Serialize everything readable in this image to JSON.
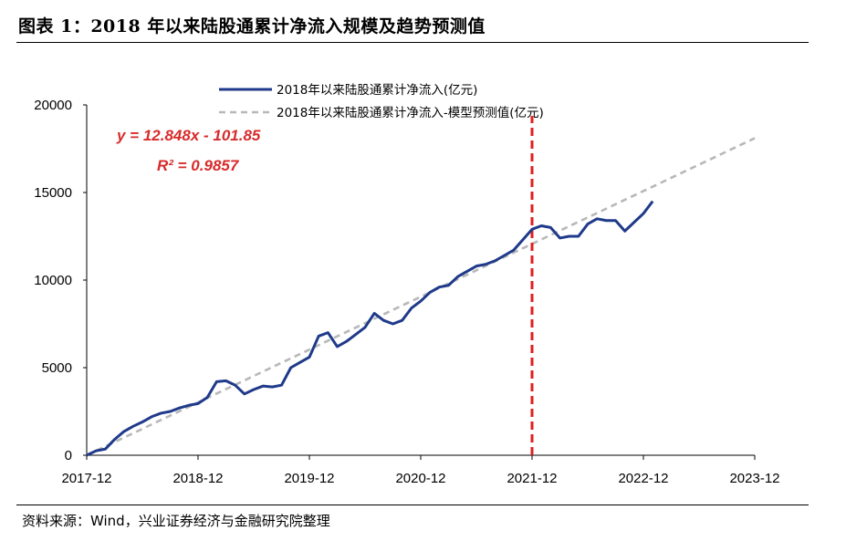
{
  "figure": {
    "title": "图表 1：2018 年以来陆股通累计净流入规模及趋势预测值",
    "source": "资料来源：Wind，兴业证券经济与金融研究院整理"
  },
  "chart_data": {
    "type": "line",
    "x_ticks": [
      "2017-12",
      "2018-12",
      "2019-12",
      "2020-12",
      "2021-12",
      "2022-12",
      "2023-12"
    ],
    "y_ticks": [
      "0",
      "5000",
      "10000",
      "15000",
      "20000"
    ],
    "ylim": [
      0,
      20000
    ],
    "xlim": [
      "2017-12",
      "2023-12"
    ],
    "legend_position": "top",
    "grid": false,
    "series": [
      {
        "name": "2018年以来陆股通累计净流入(亿元)",
        "color": "#1f3a8a",
        "style": "solid",
        "x": [
          "2017-12",
          "2018-01",
          "2018-02",
          "2018-03",
          "2018-04",
          "2018-05",
          "2018-06",
          "2018-07",
          "2018-08",
          "2018-09",
          "2018-10",
          "2018-11",
          "2018-12",
          "2019-01",
          "2019-02",
          "2019-03",
          "2019-04",
          "2019-05",
          "2019-06",
          "2019-07",
          "2019-08",
          "2019-09",
          "2019-10",
          "2019-11",
          "2019-12",
          "2020-01",
          "2020-02",
          "2020-03",
          "2020-04",
          "2020-05",
          "2020-06",
          "2020-07",
          "2020-08",
          "2020-09",
          "2020-10",
          "2020-11",
          "2020-12",
          "2021-01",
          "2021-02",
          "2021-03",
          "2021-04",
          "2021-05",
          "2021-06",
          "2021-07",
          "2021-08",
          "2021-09",
          "2021-10",
          "2021-11",
          "2021-12",
          "2022-01",
          "2022-02",
          "2022-03",
          "2022-04",
          "2022-05",
          "2022-06",
          "2022-07",
          "2022-08",
          "2022-09",
          "2022-10",
          "2022-11",
          "2022-12",
          "2023-01"
        ],
        "values": [
          0,
          250,
          350,
          900,
          1350,
          1650,
          1900,
          2200,
          2400,
          2500,
          2700,
          2850,
          2950,
          3300,
          4200,
          4250,
          4000,
          3500,
          3750,
          3950,
          3900,
          4000,
          5000,
          5300,
          5600,
          6800,
          7000,
          6200,
          6500,
          6900,
          7300,
          8100,
          7700,
          7500,
          7700,
          8400,
          8800,
          9300,
          9600,
          9700,
          10200,
          10500,
          10800,
          10900,
          11100,
          11400,
          11700,
          12300,
          12900,
          13100,
          13000,
          12400,
          12500,
          12500,
          13200,
          13500,
          13400,
          13400,
          12800,
          13300,
          13800,
          14500
        ]
      },
      {
        "name": "2018年以来陆股通累计净流入-模型预测值(亿元)",
        "color": "#b8b8b8",
        "style": "dashed",
        "x": [
          "2017-12",
          "2023-12"
        ],
        "values": [
          0,
          18100
        ]
      }
    ],
    "reference_line": {
      "x": "2021-12",
      "color": "#e02020",
      "style": "dashed"
    },
    "annotations": {
      "equation": "y = 12.848x - 101.85",
      "r2": "R² = 0.9857"
    }
  }
}
